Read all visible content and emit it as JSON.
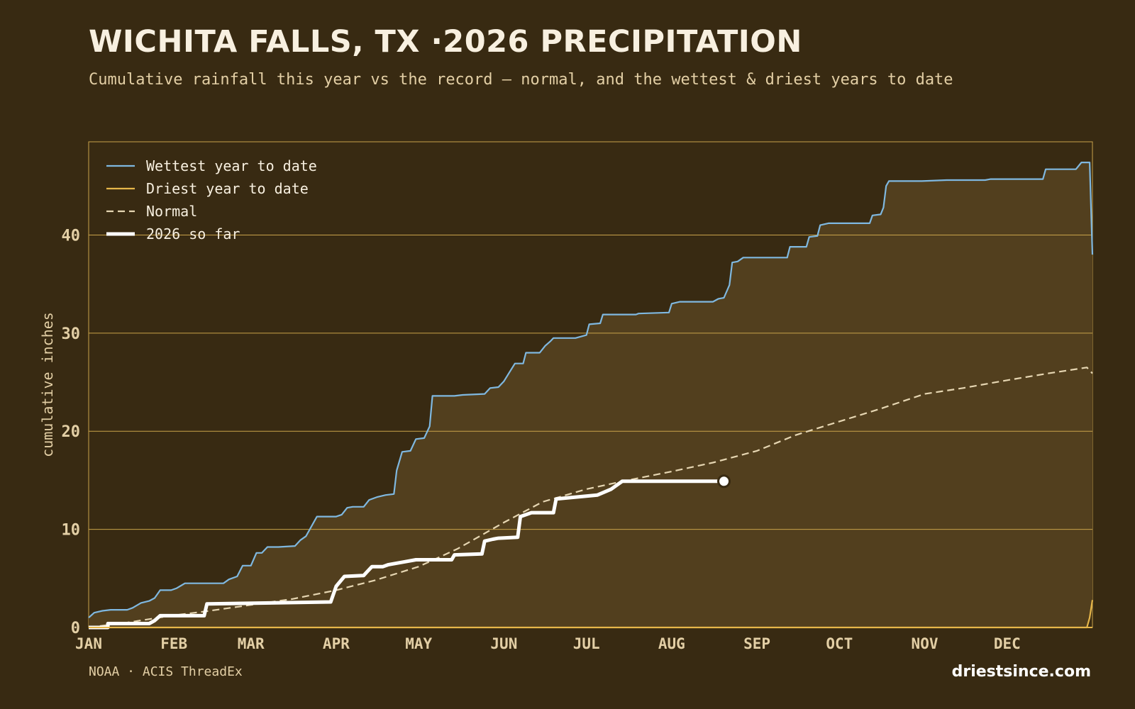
{
  "header": {
    "title": "WICHITA FALLS, TX ·2026 PRECIPITATION",
    "subtitle": "Cumulative rainfall this year vs the record — normal, and the wettest & driest years to date"
  },
  "footer": {
    "source": "NOAA · ACIS ThreadEx",
    "brand": "driestsince.com"
  },
  "colors": {
    "background": "#382a12",
    "plot_fill": "#523f1e",
    "grid": "#c9a34a",
    "wettest": "#7fb8e0",
    "driest": "#e6b64a",
    "normal": "#e6d6b2",
    "current": "#ffffff"
  },
  "chart_data": {
    "type": "line",
    "title": "WICHITA FALLS, TX ·2026 PRECIPITATION",
    "ylabel": "cumulative inches",
    "xlabel": "",
    "ylim": [
      0,
      49.5
    ],
    "xlim": [
      1,
      366
    ],
    "yticks": [
      0,
      10,
      20,
      30,
      40
    ],
    "month_ticks": [
      {
        "label": "JAN",
        "day": 1
      },
      {
        "label": "FEB",
        "day": 32
      },
      {
        "label": "MAR",
        "day": 60
      },
      {
        "label": "APR",
        "day": 91
      },
      {
        "label": "MAY",
        "day": 121
      },
      {
        "label": "JUN",
        "day": 152
      },
      {
        "label": "JUL",
        "day": 182
      },
      {
        "label": "AUG",
        "day": 213
      },
      {
        "label": "SEP",
        "day": 244
      },
      {
        "label": "OCT",
        "day": 274
      },
      {
        "label": "NOV",
        "day": 305
      },
      {
        "label": "DEC",
        "day": 335
      }
    ],
    "legend_position": "top-left",
    "grid": true,
    "series": [
      {
        "name": "Wettest year to date",
        "style": "solid",
        "fill": true,
        "points": [
          [
            1,
            1.0
          ],
          [
            3,
            1.5
          ],
          [
            6,
            1.7
          ],
          [
            9,
            1.8
          ],
          [
            15,
            1.8
          ],
          [
            17,
            2.0
          ],
          [
            20,
            2.5
          ],
          [
            23,
            2.7
          ],
          [
            25,
            3.0
          ],
          [
            27,
            3.8
          ],
          [
            31,
            3.8
          ],
          [
            33,
            4.0
          ],
          [
            36,
            4.5
          ],
          [
            44,
            4.5
          ],
          [
            50,
            4.5
          ],
          [
            52,
            4.9
          ],
          [
            55,
            5.2
          ],
          [
            57,
            6.3
          ],
          [
            60,
            6.3
          ],
          [
            62,
            7.6
          ],
          [
            64,
            7.6
          ],
          [
            66,
            8.2
          ],
          [
            70,
            8.2
          ],
          [
            76,
            8.3
          ],
          [
            78,
            8.9
          ],
          [
            80,
            9.3
          ],
          [
            82,
            10.3
          ],
          [
            84,
            11.3
          ],
          [
            91,
            11.3
          ],
          [
            93,
            11.5
          ],
          [
            95,
            12.2
          ],
          [
            97,
            12.3
          ],
          [
            101,
            12.3
          ],
          [
            103,
            13.0
          ],
          [
            106,
            13.3
          ],
          [
            109,
            13.5
          ],
          [
            112,
            13.6
          ],
          [
            113,
            16.0
          ],
          [
            115,
            17.9
          ],
          [
            118,
            18.0
          ],
          [
            120,
            19.2
          ],
          [
            123,
            19.3
          ],
          [
            125,
            20.5
          ],
          [
            126,
            23.6
          ],
          [
            134,
            23.6
          ],
          [
            137,
            23.7
          ],
          [
            145,
            23.8
          ],
          [
            147,
            24.4
          ],
          [
            150,
            24.5
          ],
          [
            152,
            25.1
          ],
          [
            154,
            26.0
          ],
          [
            156,
            26.9
          ],
          [
            159,
            26.9
          ],
          [
            160,
            28.0
          ],
          [
            165,
            28.0
          ],
          [
            167,
            28.7
          ],
          [
            169,
            29.2
          ],
          [
            170,
            29.5
          ],
          [
            178,
            29.5
          ],
          [
            182,
            29.8
          ],
          [
            183,
            30.9
          ],
          [
            187,
            31.0
          ],
          [
            188,
            31.9
          ],
          [
            200,
            31.9
          ],
          [
            201,
            32.0
          ],
          [
            212,
            32.1
          ],
          [
            213,
            33.0
          ],
          [
            216,
            33.2
          ],
          [
            228,
            33.2
          ],
          [
            230,
            33.5
          ],
          [
            232,
            33.6
          ],
          [
            234,
            34.9
          ],
          [
            235,
            37.2
          ],
          [
            237,
            37.3
          ],
          [
            239,
            37.7
          ],
          [
            255,
            37.7
          ],
          [
            256,
            38.8
          ],
          [
            262,
            38.8
          ],
          [
            263,
            39.8
          ],
          [
            266,
            39.9
          ],
          [
            267,
            41.0
          ],
          [
            270,
            41.2
          ],
          [
            285,
            41.2
          ],
          [
            286,
            42.0
          ],
          [
            289,
            42.1
          ],
          [
            290,
            42.8
          ],
          [
            291,
            45.0
          ],
          [
            292,
            45.5
          ],
          [
            304,
            45.5
          ],
          [
            313,
            45.6
          ],
          [
            327,
            45.6
          ],
          [
            329,
            45.7
          ],
          [
            348,
            45.7
          ],
          [
            349,
            46.7
          ],
          [
            360,
            46.7
          ],
          [
            362,
            47.4
          ],
          [
            365,
            47.4
          ],
          [
            366,
            38.0
          ]
        ]
      },
      {
        "name": "Driest year to date",
        "style": "solid",
        "fill": true,
        "points": [
          [
            1,
            0.0
          ],
          [
            364,
            0.0
          ],
          [
            365,
            1.0
          ],
          [
            366,
            2.8
          ]
        ]
      },
      {
        "name": "Normal",
        "style": "dashed",
        "fill": false,
        "points": [
          [
            1,
            0.0
          ],
          [
            15,
            0.5
          ],
          [
            31,
            1.2
          ],
          [
            45,
            1.7
          ],
          [
            60,
            2.3
          ],
          [
            75,
            2.9
          ],
          [
            91,
            3.8
          ],
          [
            105,
            4.8
          ],
          [
            121,
            6.2
          ],
          [
            135,
            8.0
          ],
          [
            152,
            10.7
          ],
          [
            166,
            12.8
          ],
          [
            182,
            14.1
          ],
          [
            197,
            15.0
          ],
          [
            213,
            15.9
          ],
          [
            228,
            16.8
          ],
          [
            244,
            18.0
          ],
          [
            258,
            19.6
          ],
          [
            274,
            21.0
          ],
          [
            289,
            22.3
          ],
          [
            305,
            23.8
          ],
          [
            319,
            24.4
          ],
          [
            335,
            25.2
          ],
          [
            350,
            25.9
          ],
          [
            364,
            26.5
          ],
          [
            366,
            25.9
          ]
        ]
      },
      {
        "name": "2026 so far",
        "style": "bold",
        "fill": false,
        "end_marker": true,
        "points": [
          [
            1,
            0.0
          ],
          [
            8,
            0.0
          ],
          [
            8,
            0.4
          ],
          [
            23,
            0.4
          ],
          [
            25,
            0.7
          ],
          [
            27,
            1.2
          ],
          [
            43,
            1.2
          ],
          [
            44,
            2.4
          ],
          [
            89,
            2.6
          ],
          [
            91,
            4.2
          ],
          [
            94,
            5.2
          ],
          [
            101,
            5.3
          ],
          [
            102,
            5.6
          ],
          [
            104,
            6.2
          ],
          [
            108,
            6.2
          ],
          [
            110,
            6.4
          ],
          [
            116,
            6.7
          ],
          [
            120,
            6.9
          ],
          [
            133,
            6.9
          ],
          [
            134,
            7.4
          ],
          [
            144,
            7.5
          ],
          [
            145,
            8.8
          ],
          [
            148,
            9.0
          ],
          [
            150,
            9.1
          ],
          [
            157,
            9.2
          ],
          [
            158,
            11.3
          ],
          [
            162,
            11.7
          ],
          [
            170,
            11.7
          ],
          [
            171,
            13.1
          ],
          [
            186,
            13.5
          ],
          [
            191,
            14.1
          ],
          [
            195,
            14.9
          ],
          [
            232,
            14.9
          ]
        ]
      }
    ]
  }
}
